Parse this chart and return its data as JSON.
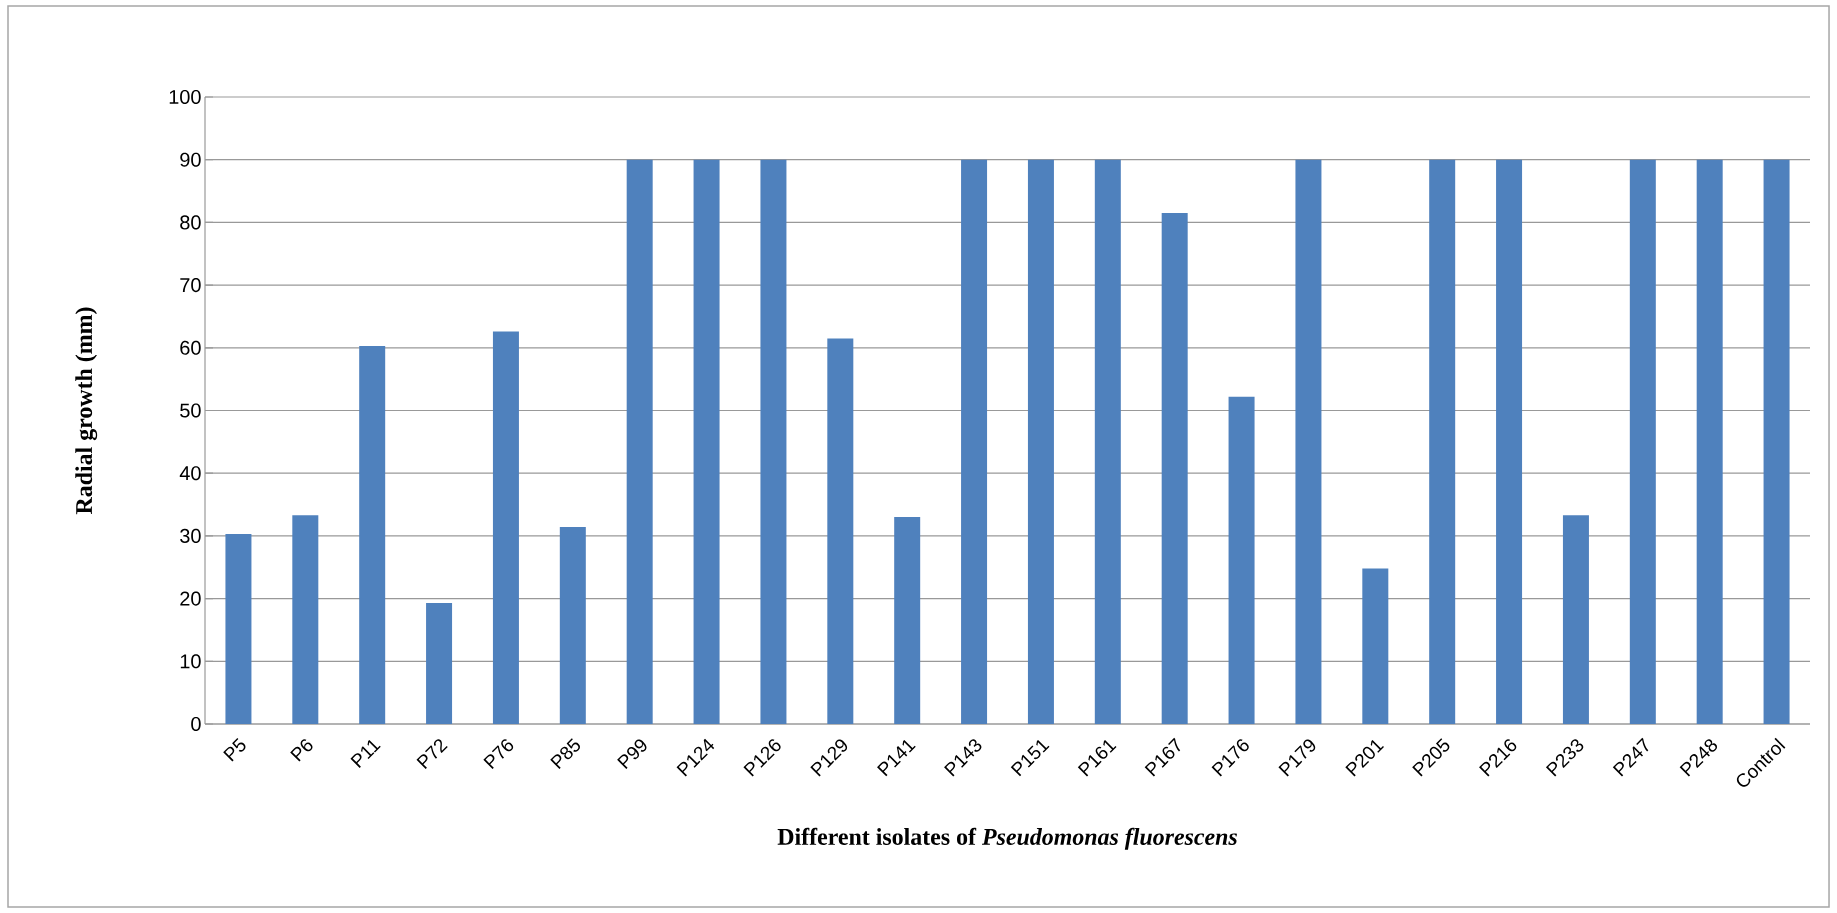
{
  "chart_data": {
    "type": "bar",
    "xlabel": "Different isolates of *Pseudomonas fluorescens*",
    "ylabel": "Radial growth (mm)",
    "categories": [
      "P5",
      "P6",
      "P11",
      "P72",
      "P76",
      "P85",
      "P99",
      "P124",
      "P126",
      "P129",
      "P141",
      "P143",
      "P151",
      "P161",
      "P167",
      "P176",
      "P179",
      "P201",
      "P205",
      "P216",
      "P233",
      "P247",
      "P248",
      "Control"
    ],
    "values": [
      30.3,
      33.3,
      60.3,
      19.3,
      62.6,
      31.4,
      90,
      90,
      90,
      61.5,
      33,
      90,
      90,
      90,
      81.5,
      52.2,
      90,
      24.8,
      90,
      90,
      33.3,
      90,
      90,
      90
    ],
    "color": "#4f81bd",
    "ylim": [
      0,
      100
    ],
    "yticks": [
      0,
      10,
      20,
      30,
      40,
      50,
      60,
      70,
      80,
      90,
      100
    ],
    "grid": "y"
  }
}
